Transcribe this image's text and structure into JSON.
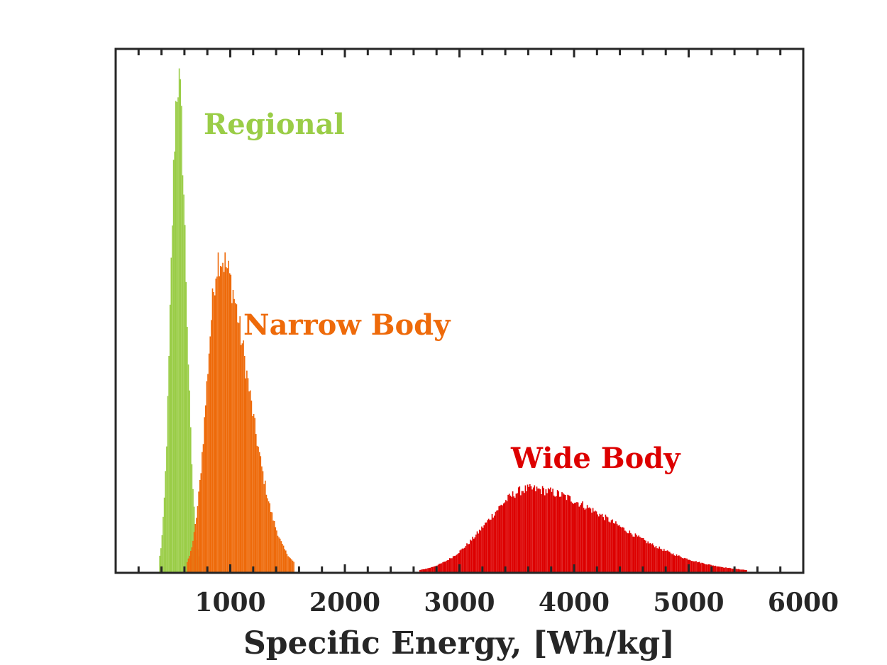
{
  "chart_data": {
    "type": "histogram",
    "title": "",
    "xlabel": "Specific Energy, [Wh/kg]",
    "ylabel": "",
    "xlim": [
      0,
      6000
    ],
    "x_ticks": [
      1000,
      2000,
      3000,
      4000,
      5000,
      6000
    ],
    "x_tick_labels": [
      "1000",
      "2000",
      "3000",
      "4000",
      "5000",
      "6000"
    ],
    "y_ticks_labeled": false,
    "grid": false,
    "legend": "none",
    "series": [
      {
        "name": "Regional",
        "color": "#9ACD47",
        "peak_x": 540,
        "range": [
          380,
          720
        ],
        "relative_peak_height": 1.0,
        "shape": "narrow, right-skewed"
      },
      {
        "name": "Narrow Body",
        "color": "#EE6A0A",
        "peak_x": 900,
        "range": [
          620,
          1550
        ],
        "relative_peak_height": 0.64,
        "shape": "right-skewed"
      },
      {
        "name": "Wide Body",
        "color": "#DD0000",
        "peak_x": 3600,
        "range": [
          2650,
          5500
        ],
        "relative_peak_height": 0.17,
        "shape": "broad, right-skewed"
      }
    ]
  }
}
